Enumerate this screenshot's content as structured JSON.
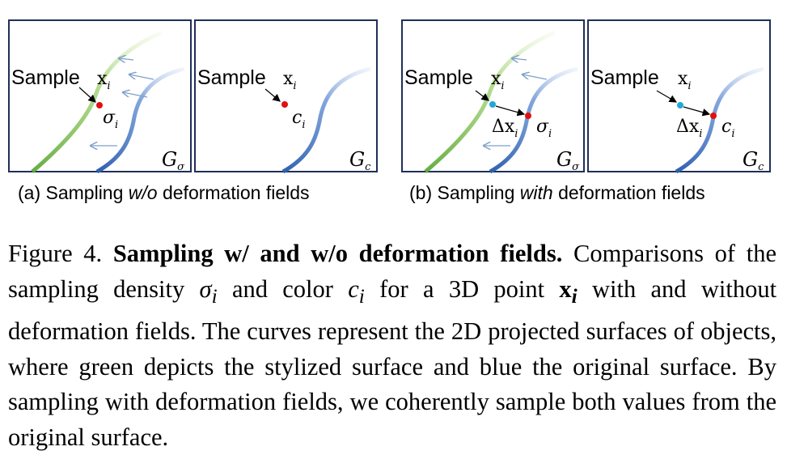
{
  "panels": {
    "left": {
      "sample_label": "Sample",
      "x_label": "x",
      "x_sub": "i",
      "sigma_label": "σ",
      "sigma_sub": "i",
      "field_symbol": "G",
      "field_sub_wo": "σ"
    },
    "right": {
      "sample_label": "Sample",
      "x_label": "x",
      "x_sub": "i",
      "c_label": "c",
      "c_sub": "i",
      "field_symbol": "G",
      "field_sub": "c"
    },
    "with_left": {
      "sample_label": "Sample",
      "x_label": "x",
      "x_sub": "i",
      "delta_label": "Δx",
      "delta_sub": "i",
      "sigma_label": "σ",
      "sigma_sub": "i",
      "field_symbol": "G",
      "field_sub": "σ"
    },
    "with_right": {
      "sample_label": "Sample",
      "x_label": "x",
      "x_sub": "i",
      "delta_label": "Δx",
      "delta_sub": "i",
      "c_label": "c",
      "c_sub": "i",
      "field_symbol": "G",
      "field_sub": "c"
    }
  },
  "subcaptions": {
    "a_prefix": "(a) Sampling ",
    "a_italic": "w/o",
    "a_suffix": " deformation fields",
    "b_prefix": "(b) Sampling ",
    "b_italic": "with",
    "b_suffix": " deformation fields"
  },
  "caption": {
    "label": "Figure 4.",
    "title": "Sampling w/ and w/o deformation fields.",
    "t1": "Comparisons of the sampling density",
    "sym_sigma": "σ",
    "sub_i": "i",
    "t2": "and color",
    "sym_c": "c",
    "t3": "for a 3D point",
    "sym_x": "x",
    "t4": "with and without deformation fields. The curves represent the 2D projected surfaces of objects, where green depicts the stylized surface and blue the original surface. By sampling with deformation fields, we coherently sample both values from the original surface."
  },
  "colors": {
    "green_surface": "#8fcc5a",
    "blue_surface": "#4f7fc7",
    "sample_point": "#e01010",
    "deformed_point": "#1fa9d6",
    "frame": "#1f2f5a"
  }
}
